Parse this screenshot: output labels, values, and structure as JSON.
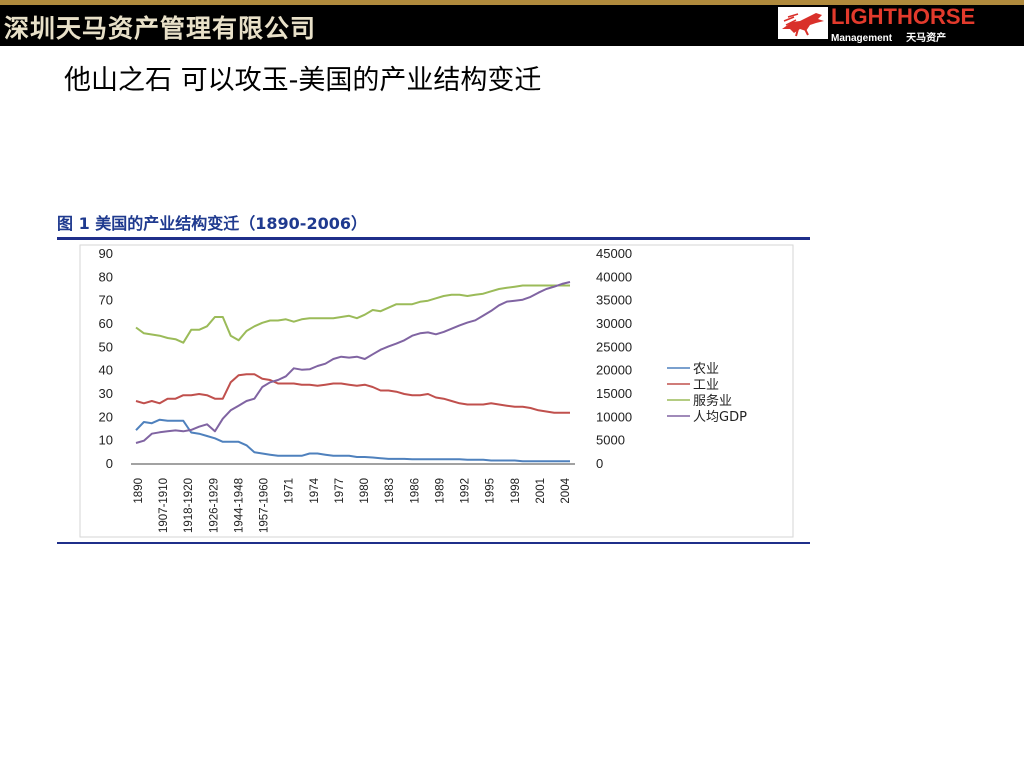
{
  "header": {
    "company": "深圳天马资产管理有限公司",
    "logo_brand": "LIGHTHORSE",
    "logo_sub_en": "Management",
    "logo_sub_cn": "天马资产"
  },
  "slide_title": "他山之石  可以攻玉-美国的产业结构变迁",
  "figure_title": "图 1  美国的产业结构变迁（1890-2006）",
  "colors": {
    "agriculture": "#4f81bd",
    "industry": "#c0504d",
    "services": "#9bbb59",
    "gdp": "#8064a2",
    "rule": "#1f2f8a",
    "brand_red": "#e23a2c"
  },
  "chart_data": {
    "type": "line",
    "x_tick_labels": [
      "1890",
      "1907-1910",
      "1918-1920",
      "1926-1929",
      "1944-1948",
      "1957-1960",
      "1971",
      "1974",
      "1977",
      "1980",
      "1983",
      "1986",
      "1989",
      "1992",
      "1995",
      "1998",
      "2001",
      "2004"
    ],
    "left_axis": {
      "range": [
        0,
        90
      ],
      "ticks": [
        0,
        10,
        20,
        30,
        40,
        50,
        60,
        70,
        80,
        90
      ]
    },
    "right_axis": {
      "range": [
        0,
        45000
      ],
      "ticks": [
        0,
        5000,
        10000,
        15000,
        20000,
        25000,
        30000,
        35000,
        40000,
        45000
      ]
    },
    "legend_position": "right",
    "grid": false,
    "series": [
      {
        "name": "农业",
        "axis": "left",
        "color_key": "agriculture",
        "values": [
          14.5,
          18,
          17.5,
          19,
          18.5,
          18.5,
          18.5,
          13.5,
          13,
          12,
          11,
          9.5,
          9.5,
          9.5,
          8,
          5,
          4.5,
          4,
          3.5,
          3.5,
          3.5,
          3.5,
          4.5,
          4.5,
          4,
          3.5,
          3.5,
          3.5,
          3,
          3,
          2.8,
          2.5,
          2.2,
          2.2,
          2.2,
          2,
          2,
          2,
          2,
          2,
          2,
          2,
          1.8,
          1.8,
          1.8,
          1.5,
          1.5,
          1.5,
          1.5,
          1.2,
          1.2,
          1.2,
          1.2,
          1.2,
          1.2,
          1.2
        ]
      },
      {
        "name": "工业",
        "axis": "left",
        "color_key": "industry",
        "values": [
          27,
          26,
          27,
          26,
          28,
          28,
          29.5,
          29.5,
          30,
          29.5,
          28,
          28,
          35,
          38,
          38.5,
          38.5,
          36.5,
          36,
          34.5,
          34.5,
          34.5,
          34,
          34,
          33.5,
          34,
          34.5,
          34.5,
          34,
          33.5,
          34,
          33,
          31.5,
          31.5,
          31,
          30,
          29.5,
          29.5,
          30,
          28.5,
          28,
          27,
          26,
          25.5,
          25.5,
          25.5,
          26,
          25.5,
          25,
          24.5,
          24.5,
          24,
          23,
          22.5,
          22,
          22,
          22
        ]
      },
      {
        "name": "服务业",
        "axis": "left",
        "color_key": "services",
        "values": [
          58.5,
          56,
          55.5,
          55,
          54,
          53.5,
          52,
          57.5,
          57.5,
          59,
          63,
          63,
          55,
          53,
          57,
          59,
          60.5,
          61.5,
          61.5,
          62,
          61,
          62,
          62.5,
          62.5,
          62.5,
          62.5,
          63,
          63.5,
          62.5,
          64,
          66,
          65.5,
          67,
          68.5,
          68.5,
          68.5,
          69.5,
          70,
          71,
          72,
          72.5,
          72.5,
          72,
          72.5,
          73,
          74,
          75,
          75.5,
          76,
          76.5,
          76.5,
          76.5,
          76.5,
          76.5,
          76.5,
          76.5
        ]
      },
      {
        "name": "人均GDP",
        "axis": "right",
        "color_key": "gdp",
        "values": [
          4500,
          5000,
          6500,
          6800,
          7000,
          7200,
          7000,
          7300,
          8000,
          8500,
          7000,
          9700,
          11500,
          12500,
          13500,
          14000,
          16500,
          17500,
          18000,
          18800,
          20500,
          20200,
          20300,
          21000,
          21500,
          22500,
          23000,
          22800,
          23000,
          22500,
          23500,
          24500,
          25200,
          25800,
          26500,
          27500,
          28000,
          28200,
          27800,
          28300,
          29000,
          29700,
          30300,
          30800,
          31800,
          32800,
          34000,
          34800,
          35000,
          35200,
          35800,
          36700,
          37500,
          38000,
          38600,
          39000
        ]
      }
    ]
  }
}
